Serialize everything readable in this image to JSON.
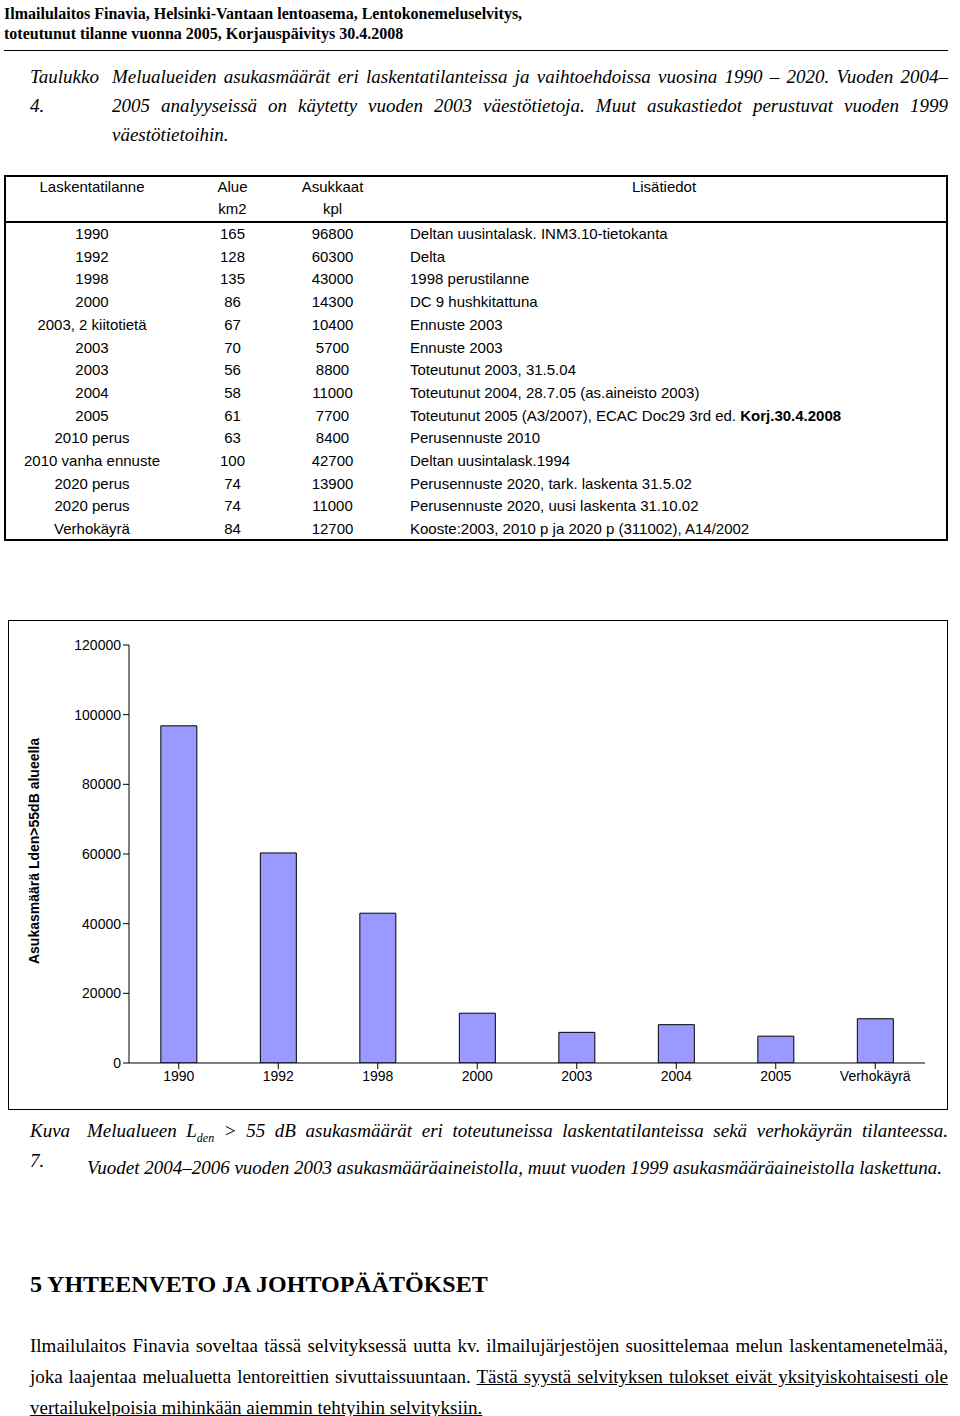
{
  "header": {
    "lines": [
      "Ilmailulaitos Finavia, Helsinki-Vantaan lentoasema, Lentokonemeluselvitys,",
      "toteutunut tilanne vuonna 2005, Korjauspäivitys 30.4.2008"
    ]
  },
  "table_caption": {
    "label": "Taulukko 4.",
    "text": "Melualueiden asukasmäärät eri laskentatilanteissa ja vaihtoehdoissa vuosina 1990 – 2020. Vuoden 2004–2005 analyyseissä on käytetty vuoden 2003 väestötietoja. Muut asukastiedot perustuvat vuoden 1999 väestötietoihin."
  },
  "table": {
    "columns": [
      {
        "label": "Laskentatilanne"
      },
      {
        "label": "Alue",
        "unit": "km2"
      },
      {
        "label": "Asukkaat",
        "unit": "kpl"
      },
      {
        "label": "Lisätiedot"
      }
    ],
    "rows": [
      {
        "case": "1990",
        "area": 165,
        "residents": 96800,
        "note": "Deltan uusintalask. INM3.10-tietokanta"
      },
      {
        "case": "1992",
        "area": 128,
        "residents": 60300,
        "note": "Delta"
      },
      {
        "case": "1998",
        "area": 135,
        "residents": 43000,
        "note": "1998 perustilanne"
      },
      {
        "case": "2000",
        "area": 86,
        "residents": 14300,
        "note": "DC 9 hushkitattuna"
      },
      {
        "case": "2003, 2 kiitotietä",
        "area": 67,
        "residents": 10400,
        "note": "Ennuste 2003"
      },
      {
        "case": "2003",
        "area": 70,
        "residents": 5700,
        "note": "Ennuste 2003"
      },
      {
        "case": "2003",
        "area": 56,
        "residents": 8800,
        "note": "Toteutunut 2003, 31.5.04"
      },
      {
        "case": "2004",
        "area": 58,
        "residents": 11000,
        "note": "Toteutunut 2004, 28.7.05 (as.aineisto 2003)"
      },
      {
        "case": "2005",
        "area": 61,
        "residents": 7700,
        "note": "Toteutunut 2005 (A3/2007), ECAC Doc29 3rd ed.",
        "note_bold": "Korj.30.4.2008"
      },
      {
        "case": "2010 perus",
        "area": 63,
        "residents": 8400,
        "note": "Perusennuste 2010"
      },
      {
        "case": "2010 vanha ennuste",
        "area": 100,
        "residents": 42700,
        "note": "Deltan uusintalask.1994"
      },
      {
        "case": "2020 perus",
        "area": 74,
        "residents": 13900,
        "note": "Perusennuste 2020, tark. laskenta 31.5.02"
      },
      {
        "case": "2020 perus",
        "area": 74,
        "residents": 11000,
        "note": "Perusennuste 2020, uusi laskenta 31.10.02"
      },
      {
        "case": "Verhokäyrä",
        "area": 84,
        "residents": 12700,
        "note": "Kooste:2003, 2010 p ja 2020 p (311002), A14/2002"
      }
    ]
  },
  "chart_data": {
    "type": "bar",
    "y_label": "Asukasmäärä Lden>55dB alueella",
    "categories": [
      "1990",
      "1992",
      "1998",
      "2000",
      "2003",
      "2004",
      "2005",
      "Verhokäyrä"
    ],
    "values": [
      96800,
      60300,
      43000,
      14300,
      8800,
      11000,
      7700,
      12700
    ],
    "color": "#9999ff",
    "ylim": [
      0,
      120000
    ],
    "yticks": [
      0,
      20000,
      40000,
      60000,
      80000,
      100000,
      120000
    ],
    "grid": false
  },
  "figure_caption": {
    "label": "Kuva 7.",
    "text_before": "Melualueen L",
    "subscript": "den",
    "text_after": " > 55 dB asukasmäärät eri toteutuneissa laskentatilanteissa sekä verhokäyrän tilanteessa. Vuodet 2004–2006 vuoden 2003 asukasmääräaineistolla, muut vuoden 1999 asukasmääräaineistolla laskettuna."
  },
  "section": {
    "heading": "5 YHTEENVETO JA JOHTOPÄÄTÖKSET",
    "paragraph": "Ilmailulaitos Finavia soveltaa tässä selvityksessä uutta kv. ilmailujärjestöjen suosittelemaa melun laskentamenetelmää, joka laajentaa melualuetta lentoreittien sivuttaissuuntaan.",
    "paragraph_underlined": "Tästä syystä selvityksen tulokset eivät yksityiskohtaisesti ole vertailukelpoisia mihinkään aiemmin tehtyihin selvityksiin."
  }
}
